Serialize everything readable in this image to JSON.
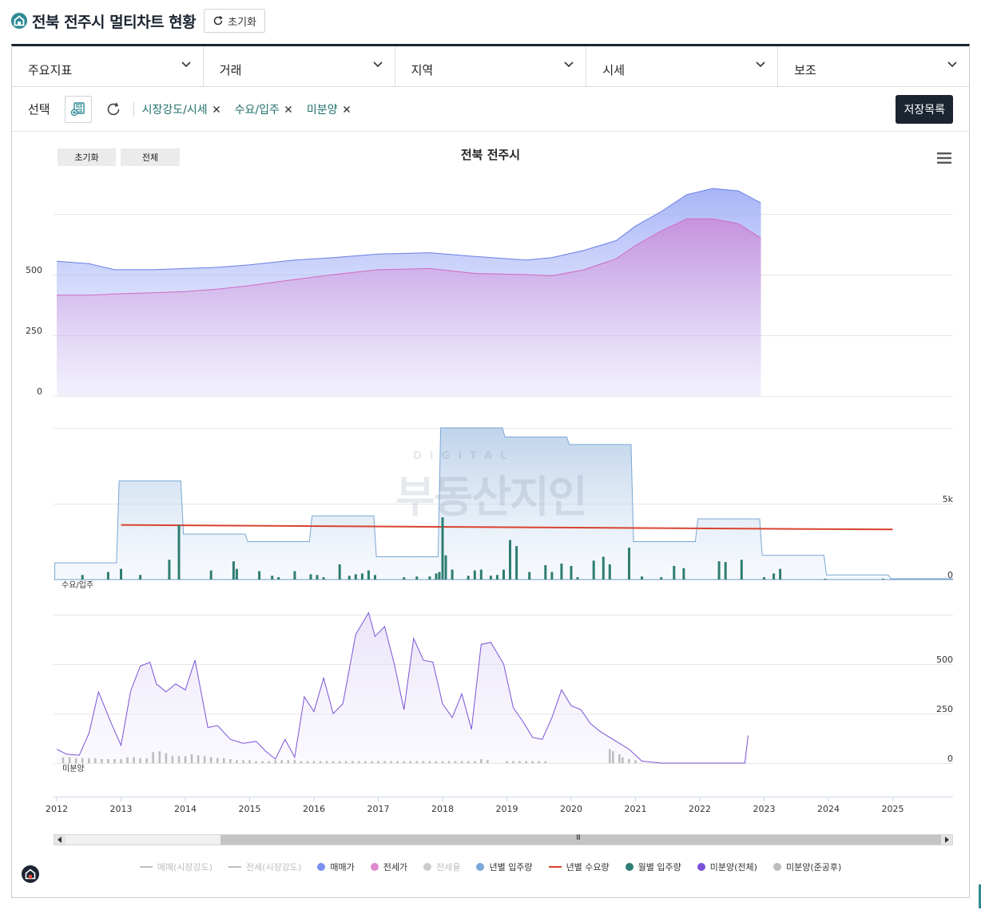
{
  "page": {
    "title": "전북 전주시 멀티차트 현황",
    "reset_label": "초기화"
  },
  "filters": {
    "dropdowns": [
      {
        "label": "주요지표"
      },
      {
        "label": "거래"
      },
      {
        "label": "지역"
      },
      {
        "label": "시세"
      },
      {
        "label": "보조"
      }
    ]
  },
  "selection": {
    "label": "선택",
    "chips": [
      {
        "label": "시장강도/시세"
      },
      {
        "label": "수요/입주"
      },
      {
        "label": "미분양"
      }
    ],
    "save_list_label": "저장목록"
  },
  "chart_controls": {
    "reset_label": "초기화",
    "all_label": "전체",
    "scroll_grip": "III"
  },
  "colors": {
    "accent": "#2f8a94",
    "dark": "#1b2430",
    "sale_price": "#7b8ff0",
    "jeonse_price": "#e08ad0",
    "yearly_supply": "#7aa7d6",
    "yearly_demand": "#d9432f",
    "monthly_supply": "#2e7d72",
    "unsold_total": "#7b52d6",
    "unsold_completed": "#bdbdbd"
  },
  "chart_data": {
    "type": "multi-panel",
    "title": "전북 전주시",
    "x_ticks": [
      "2012",
      "2013",
      "2014",
      "2015",
      "2016",
      "2017",
      "2018",
      "2019",
      "2020",
      "2021",
      "2022",
      "2023",
      "2024",
      "2025"
    ],
    "panels": [
      {
        "name": "시장강도/시세",
        "type": "area",
        "y_ticks": [
          "0",
          "250",
          "500"
        ],
        "ylim": [
          0,
          1000
        ],
        "x": [
          2012.0,
          2012.5,
          2012.9,
          2013.5,
          2014.0,
          2014.5,
          2015.0,
          2015.7,
          2016.3,
          2017.0,
          2017.8,
          2018.5,
          2019.3,
          2019.7,
          2020.2,
          2020.7,
          2021.0,
          2021.4,
          2021.8,
          2022.2,
          2022.6,
          2022.95
        ],
        "series": [
          {
            "name": "매매가",
            "values": [
              555,
              545,
              520,
              520,
              525,
              530,
              540,
              560,
              570,
              585,
              590,
              575,
              560,
              570,
              600,
              640,
              700,
              760,
              830,
              855,
              845,
              795
            ]
          },
          {
            "name": "전세가",
            "values": [
              415,
              415,
              420,
              425,
              430,
              440,
              455,
              480,
              500,
              520,
              525,
              505,
              500,
              495,
              520,
              565,
              620,
              680,
              730,
              730,
              710,
              650
            ]
          }
        ]
      },
      {
        "name": "수요/입주",
        "type": "bar+line+step-area",
        "label": "수요/입주",
        "y_ticks": [
          "0",
          "5k"
        ],
        "ylim": [
          0,
          10000
        ],
        "yearly_supply": {
          "name": "년별 입주량",
          "x": [
            2012,
            2013,
            2014,
            2015,
            2016,
            2017,
            2018,
            2019,
            2020,
            2021,
            2022,
            2023,
            2024,
            2025
          ],
          "values": [
            1100,
            6500,
            3000,
            2500,
            4200,
            1500,
            10000,
            9400,
            8900,
            2500,
            4000,
            1600,
            300,
            50
          ]
        },
        "yearly_demand": {
          "name": "년별 수요량",
          "x": [
            2013,
            2025
          ],
          "values": [
            3600,
            3300
          ]
        },
        "monthly_supply": {
          "name": "월별 입주량",
          "x": [
            2012.4,
            2012.8,
            2013.0,
            2013.3,
            2013.75,
            2013.9,
            2014.4,
            2014.75,
            2014.8,
            2015.15,
            2015.35,
            2015.45,
            2015.7,
            2015.95,
            2016.05,
            2016.15,
            2016.4,
            2016.55,
            2016.65,
            2016.75,
            2016.85,
            2016.95,
            2017.4,
            2017.6,
            2017.8,
            2017.9,
            2017.95,
            2018.0,
            2018.05,
            2018.15,
            2018.4,
            2018.5,
            2018.6,
            2018.75,
            2018.85,
            2018.95,
            2019.05,
            2019.15,
            2019.35,
            2019.6,
            2019.7,
            2019.85,
            2020.0,
            2020.1,
            2020.35,
            2020.5,
            2020.6,
            2020.9,
            2021.1,
            2021.4,
            2021.6,
            2021.75,
            2022.3,
            2022.4,
            2022.65,
            2023.0,
            2023.15,
            2023.25,
            2023.95,
            2024.85
          ],
          "values": [
            300,
            500,
            700,
            300,
            1300,
            3600,
            600,
            1200,
            700,
            550,
            250,
            150,
            550,
            350,
            300,
            150,
            1000,
            250,
            350,
            400,
            600,
            300,
            150,
            200,
            200,
            400,
            500,
            4100,
            1600,
            650,
            250,
            600,
            650,
            250,
            300,
            650,
            2600,
            2200,
            500,
            950,
            500,
            1050,
            900,
            150,
            1250,
            1500,
            1000,
            2100,
            200,
            150,
            900,
            750,
            1200,
            1150,
            1300,
            150,
            400,
            700,
            50,
            50
          ]
        }
      },
      {
        "name": "미분양",
        "type": "line+bar",
        "label": "미분양",
        "y_ticks": [
          "0",
          "250",
          "500"
        ],
        "ylim": [
          0,
          750
        ],
        "unsold_total": {
          "name": "미분양(전체)",
          "x": [
            2012.0,
            2012.15,
            2012.35,
            2012.5,
            2012.65,
            2012.85,
            2013.0,
            2013.15,
            2013.3,
            2013.45,
            2013.55,
            2013.7,
            2013.85,
            2014.0,
            2014.15,
            2014.35,
            2014.5,
            2014.7,
            2014.9,
            2015.1,
            2015.25,
            2015.4,
            2015.55,
            2015.7,
            2015.85,
            2016.0,
            2016.15,
            2016.3,
            2016.45,
            2016.65,
            2016.85,
            2016.95,
            2017.1,
            2017.25,
            2017.4,
            2017.55,
            2017.7,
            2017.85,
            2018.0,
            2018.15,
            2018.3,
            2018.45,
            2018.6,
            2018.75,
            2018.95,
            2019.1,
            2019.25,
            2019.4,
            2019.55,
            2019.7,
            2019.85,
            2020.0,
            2020.15,
            2020.3,
            2020.45,
            2020.6,
            2020.75,
            2020.9,
            2021.1,
            2021.4,
            2021.8,
            2022.2,
            2022.6,
            2022.7,
            2022.75
          ],
          "values": [
            70,
            45,
            40,
            150,
            360,
            200,
            90,
            365,
            490,
            510,
            400,
            360,
            400,
            370,
            520,
            180,
            190,
            120,
            100,
            110,
            60,
            20,
            120,
            30,
            335,
            260,
            430,
            250,
            300,
            650,
            760,
            640,
            690,
            500,
            270,
            630,
            520,
            510,
            300,
            230,
            350,
            170,
            600,
            610,
            500,
            280,
            210,
            130,
            120,
            230,
            370,
            290,
            270,
            200,
            160,
            130,
            100,
            70,
            10,
            0,
            0,
            0,
            0,
            0,
            140
          ]
        },
        "unsold_completed": {
          "name": "미분양(준공후)",
          "x": [
            2012.1,
            2012.2,
            2012.3,
            2012.4,
            2012.5,
            2012.6,
            2012.7,
            2012.8,
            2012.9,
            2013.0,
            2013.1,
            2013.2,
            2013.3,
            2013.4,
            2013.5,
            2013.6,
            2013.7,
            2013.8,
            2013.9,
            2014.0,
            2014.1,
            2014.2,
            2014.3,
            2014.4,
            2014.5,
            2014.6,
            2014.7,
            2014.8,
            2014.9,
            2015.0,
            2015.1,
            2015.2,
            2015.3,
            2015.4,
            2015.5,
            2015.6,
            2015.7,
            2015.8,
            2015.9,
            2016.0,
            2016.1,
            2016.2,
            2016.3,
            2016.4,
            2016.5,
            2016.6,
            2016.7,
            2016.8,
            2016.9,
            2017.0,
            2017.1,
            2017.2,
            2017.3,
            2017.4,
            2017.5,
            2017.6,
            2017.7,
            2017.8,
            2017.9,
            2018.0,
            2018.1,
            2018.2,
            2018.3,
            2018.4,
            2018.5,
            2018.6,
            2018.7,
            2019.0,
            2019.1,
            2019.2,
            2019.3,
            2019.4,
            2019.5,
            2019.6,
            2020.6,
            2020.65,
            2020.75,
            2020.8,
            2020.9,
            2021.0
          ],
          "values": [
            30,
            30,
            25,
            25,
            25,
            25,
            20,
            20,
            20,
            20,
            30,
            30,
            25,
            25,
            55,
            60,
            50,
            35,
            35,
            35,
            45,
            40,
            35,
            30,
            25,
            25,
            20,
            15,
            15,
            15,
            10,
            10,
            10,
            15,
            15,
            15,
            15,
            10,
            10,
            10,
            10,
            10,
            10,
            10,
            10,
            10,
            10,
            10,
            10,
            10,
            10,
            10,
            10,
            10,
            10,
            10,
            10,
            10,
            10,
            10,
            10,
            10,
            10,
            10,
            10,
            20,
            15,
            10,
            10,
            10,
            10,
            10,
            10,
            10,
            70,
            60,
            45,
            30,
            20,
            15
          ]
        }
      }
    ],
    "legend": [
      {
        "name": "매매(시장강도)",
        "symbol": "line",
        "color": "#bdbdbd",
        "enabled": false
      },
      {
        "name": "전세(시장강도)",
        "symbol": "line",
        "color": "#bdbdbd",
        "enabled": false
      },
      {
        "name": "매매가",
        "symbol": "dot",
        "color": "#7b8ff0",
        "enabled": true
      },
      {
        "name": "전세가",
        "symbol": "dot",
        "color": "#e08ad0",
        "enabled": true
      },
      {
        "name": "전세율",
        "symbol": "dot",
        "color": "#cccccc",
        "enabled": false
      },
      {
        "name": "년별 입주량",
        "symbol": "dot",
        "color": "#7aa7d6",
        "enabled": true
      },
      {
        "name": "년별 수요량",
        "symbol": "line",
        "color": "#d9432f",
        "enabled": true
      },
      {
        "name": "월별 입주량",
        "symbol": "dot",
        "color": "#2e7d72",
        "enabled": true
      },
      {
        "name": "미분양(전체)",
        "symbol": "dot",
        "color": "#7b52d6",
        "enabled": true
      },
      {
        "name": "미분양(준공후)",
        "symbol": "dot",
        "color": "#bdbdbd",
        "enabled": true
      }
    ],
    "watermark": {
      "small": "DIGITAL",
      "big": "부동산지인"
    },
    "grid": true
  }
}
